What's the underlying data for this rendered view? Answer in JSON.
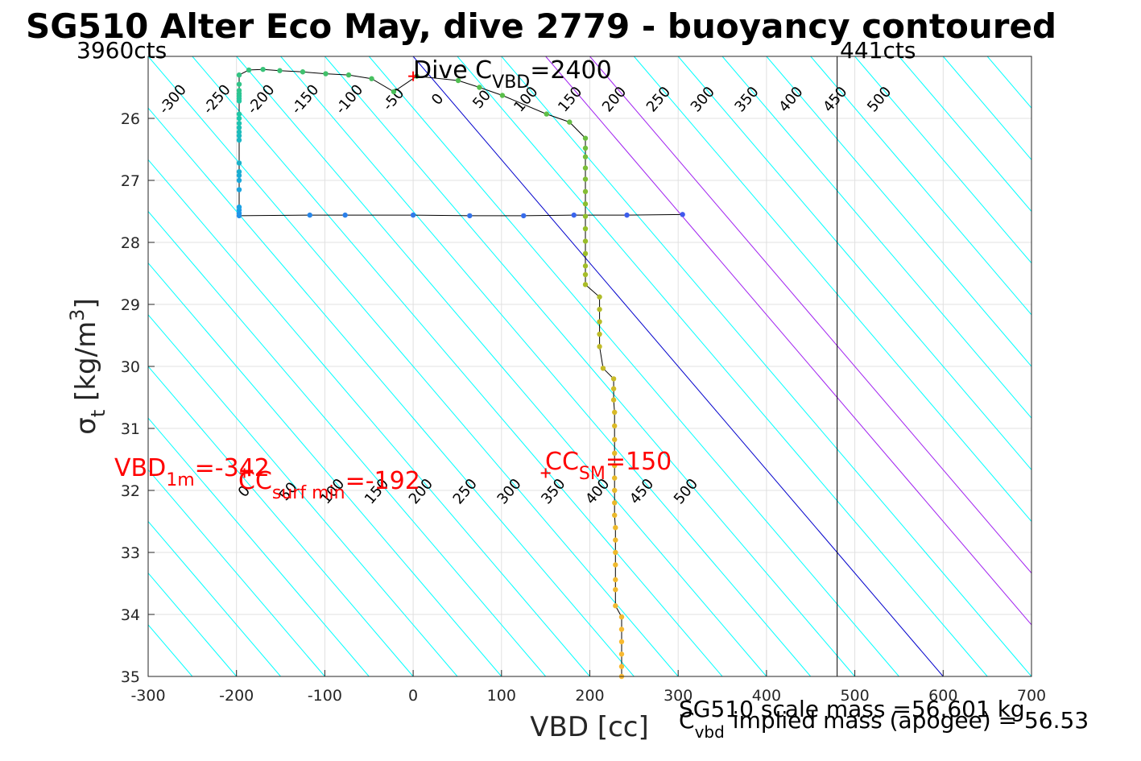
{
  "colors": {
    "background": "#ffffff",
    "grid": "#e0e0e0",
    "contour_cyan": "#00ffff",
    "contour_purple": "#a020f0",
    "contour_blue": "#0000cc",
    "trace_line": "#000000",
    "annotation_red": "#ff0000",
    "apogee_line": "#000000"
  },
  "chart_data": {
    "type": "scatter",
    "title": "SG510 Alter Eco May, dive 2779 - buoyancy contoured",
    "xlabel": "VBD [cc]",
    "ylabel": "σt [kg/m3]",
    "xlim": [
      -300,
      700
    ],
    "ylim": [
      25,
      35
    ],
    "y_reversed": true,
    "grid": true,
    "x_ticks": [
      "-300",
      "-200",
      "-100",
      "0",
      "100",
      "200",
      "300",
      "400",
      "500",
      "600",
      "700"
    ],
    "y_ticks": [
      "26",
      "27",
      "28",
      "29",
      "30",
      "31",
      "32",
      "33",
      "34",
      "35"
    ],
    "corner_labels": {
      "left": "3960cts",
      "right": "441cts"
    },
    "apogee_vline_x": 480,
    "contour_slope_cc_per_sigma": 60,
    "contours_top": [
      "-300",
      "-250",
      "-200",
      "-150",
      "-100",
      "-50",
      "0",
      "50",
      "100",
      "150",
      "200",
      "250",
      "300",
      "350",
      "400",
      "450",
      "500"
    ],
    "contours_bottom": [
      "0",
      "50",
      "100",
      "150",
      "200",
      "250",
      "300",
      "350",
      "400",
      "450",
      "500"
    ],
    "highlight_contours": [
      {
        "value": "0",
        "color": "blue"
      },
      {
        "value": "150",
        "color": "purple"
      },
      {
        "value": "200",
        "color": "purple"
      }
    ],
    "annotations": {
      "dive_c": {
        "main": "Dive C",
        "sub": "VBD",
        "value": "=2400"
      },
      "vbd_1m": {
        "main": "VBD",
        "sub": "1m",
        "value": "=-342"
      },
      "cc_surf": {
        "main": "CC",
        "sub": "surf min",
        "value": "=-192"
      },
      "cc_sm": {
        "main": "CC",
        "sub": "SM",
        "value": "=150"
      },
      "mass_line1": "SG510 scale mass =56.601 kg",
      "mass_line2_main": "C",
      "mass_line2_sub": "vbd",
      "mass_line2_rest": "implied mass (apogee) = 56.53"
    },
    "series": [
      {
        "segment": "descent",
        "points": [
          [
            305,
            27.55
          ],
          [
            242,
            27.56
          ],
          [
            182,
            27.56
          ],
          [
            125,
            27.57
          ],
          [
            64,
            27.57
          ],
          [
            0,
            27.56
          ],
          [
            -77,
            27.56
          ],
          [
            -117,
            27.56
          ],
          [
            -197,
            27.57
          ],
          [
            -197,
            27.53
          ],
          [
            -197,
            27.48
          ],
          [
            -197,
            27.43
          ],
          [
            -197,
            27.15
          ],
          [
            -197,
            27.0
          ],
          [
            -197,
            26.92
          ],
          [
            -197,
            26.86
          ],
          [
            -197,
            26.72
          ],
          [
            -197,
            26.35
          ],
          [
            -197,
            26.28
          ],
          [
            -197,
            26.22
          ],
          [
            -197,
            26.15
          ],
          [
            -197,
            26.08
          ],
          [
            -197,
            26.0
          ],
          [
            -197,
            25.93
          ],
          [
            -197,
            25.72
          ],
          [
            -197,
            25.68
          ],
          [
            -197,
            25.64
          ],
          [
            -197,
            25.6
          ],
          [
            -197,
            25.55
          ],
          [
            -197,
            25.45
          ],
          [
            -197,
            25.3
          ],
          [
            -186,
            25.22
          ],
          [
            -170,
            25.21
          ],
          [
            -151,
            25.23
          ],
          [
            -125,
            25.25
          ],
          [
            -99,
            25.28
          ],
          [
            -73,
            25.3
          ],
          [
            -47,
            25.36
          ],
          [
            -22,
            25.57
          ],
          [
            4,
            25.32
          ],
          [
            51,
            25.39
          ],
          [
            75,
            25.5
          ],
          [
            101,
            25.63
          ],
          [
            151,
            25.93
          ],
          [
            177,
            26.06
          ],
          [
            195,
            26.32
          ],
          [
            195,
            26.48
          ],
          [
            195,
            26.62
          ],
          [
            195,
            26.8
          ],
          [
            195,
            26.98
          ],
          [
            195,
            27.18
          ],
          [
            195,
            27.38
          ],
          [
            195,
            27.58
          ],
          [
            195,
            27.78
          ],
          [
            195,
            27.98
          ],
          [
            195,
            28.18
          ],
          [
            195,
            28.38
          ],
          [
            195,
            28.52
          ],
          [
            195,
            28.68
          ],
          [
            211,
            28.88
          ],
          [
            211,
            29.08
          ],
          [
            211,
            29.28
          ],
          [
            211,
            29.48
          ],
          [
            211,
            29.68
          ],
          [
            215,
            30.03
          ],
          [
            227,
            30.2
          ],
          [
            227,
            30.36
          ],
          [
            227,
            30.54
          ],
          [
            228,
            30.74
          ],
          [
            228,
            30.96
          ],
          [
            228,
            31.18
          ],
          [
            228,
            31.4
          ],
          [
            228,
            31.6
          ],
          [
            228,
            31.8
          ],
          [
            228,
            32.0
          ],
          [
            228,
            32.2
          ],
          [
            228,
            32.4
          ],
          [
            229,
            32.6
          ],
          [
            229,
            32.8
          ],
          [
            229,
            33.0
          ],
          [
            229,
            33.2
          ],
          [
            229,
            33.44
          ],
          [
            229,
            33.6
          ],
          [
            229,
            33.86
          ],
          [
            236,
            34.04
          ],
          [
            236,
            34.24
          ],
          [
            236,
            34.44
          ],
          [
            236,
            34.64
          ],
          [
            236,
            34.84
          ],
          [
            236,
            35.0
          ]
        ]
      }
    ],
    "markers": [
      {
        "name": "dive-c-marker",
        "x": 0,
        "y": 25.32,
        "symbol": "+"
      },
      {
        "name": "cc-sm-marker",
        "x": 150,
        "y": 31.72,
        "symbol": "+"
      },
      {
        "name": "cc-surf-marker",
        "x": -191,
        "y": 31.72,
        "symbol": "+"
      }
    ]
  }
}
